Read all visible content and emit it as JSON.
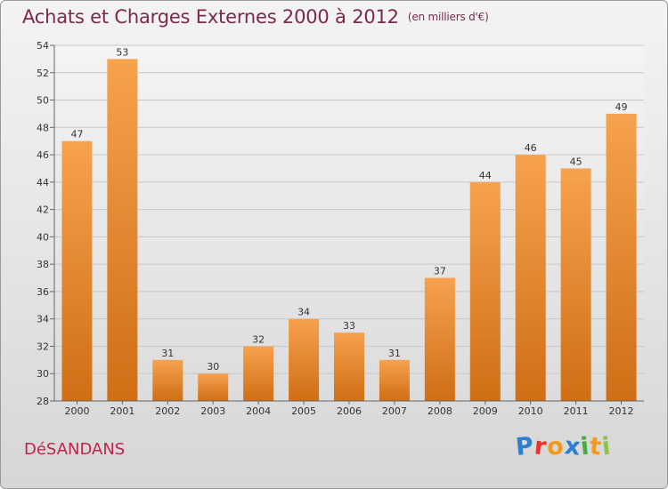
{
  "header": {
    "title": "Achats et Charges Externes 2000 à 2012",
    "subtitle": "(en milliers d'€)"
  },
  "footer": {
    "commune": "DéSANDANS",
    "logo_letters": [
      {
        "char": "P",
        "color": "#2e7fd0"
      },
      {
        "char": "r",
        "color": "#e8332a"
      },
      {
        "char": "o",
        "color": "#f29a1f"
      },
      {
        "char": "x",
        "color": "#2e7fd0"
      },
      {
        "char": "i",
        "color": "#49a942"
      },
      {
        "char": "t",
        "color": "#f29a1f"
      },
      {
        "char": "i",
        "color": "#8bc34a"
      }
    ]
  },
  "chart_data": {
    "type": "bar",
    "title": "Achats et Charges Externes 2000 à 2012",
    "subtitle": "(en milliers d'€)",
    "categories": [
      "2000",
      "2001",
      "2002",
      "2003",
      "2004",
      "2005",
      "2006",
      "2007",
      "2008",
      "2009",
      "2010",
      "2011",
      "2012"
    ],
    "values": [
      47,
      53,
      31,
      30,
      32,
      34,
      33,
      31,
      37,
      44,
      46,
      45,
      49
    ],
    "data_labels": [
      "47",
      "53",
      "31",
      "30",
      "32",
      "34",
      "33",
      "31",
      "37",
      "44",
      "46",
      "45",
      "49"
    ],
    "y_ticks": [
      28,
      30,
      32,
      34,
      36,
      38,
      40,
      42,
      44,
      46,
      48,
      50,
      52,
      54
    ],
    "y_tick_labels": [
      "28",
      "30",
      "32",
      "34",
      "36",
      "38",
      "40",
      "42",
      "44",
      "46",
      "48",
      "50",
      "52",
      "54"
    ],
    "ylim": [
      28,
      54
    ],
    "xlabel": "",
    "ylabel": "",
    "grid": true,
    "legend": "none",
    "bar_color_top": "#f7a24e",
    "bar_color_bottom": "#cf6e15"
  }
}
